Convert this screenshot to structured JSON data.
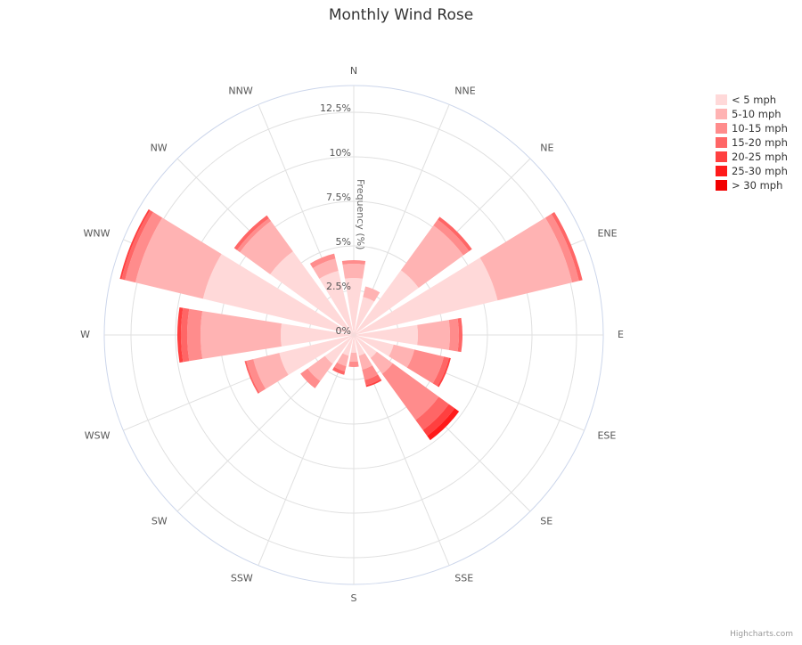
{
  "chart_data": {
    "type": "windrose",
    "title": "Monthly Wind Rose",
    "axis_label": "Frequency (%)",
    "credit": "Highcharts.com",
    "categories": [
      "N",
      "NNE",
      "NE",
      "ENE",
      "E",
      "ESE",
      "SE",
      "SSE",
      "S",
      "SSW",
      "SW",
      "WSW",
      "W",
      "WNW",
      "NW",
      "NNW"
    ],
    "ylim": [
      0,
      14
    ],
    "yticks": [
      {
        "value": 0,
        "label": "0%"
      },
      {
        "value": 2.5,
        "label": "2.5%"
      },
      {
        "value": 5,
        "label": "5%"
      },
      {
        "value": 7.5,
        "label": "7.5%"
      },
      {
        "value": 10,
        "label": "10%"
      },
      {
        "value": 12.5,
        "label": "12.5%"
      }
    ],
    "grid": true,
    "legend": "top-right",
    "series": [
      {
        "name": "< 5 mph",
        "color": "#ffd9d9",
        "values": [
          3.2,
          2.2,
          4.5,
          8.3,
          3.6,
          2.3,
          1.6,
          1.2,
          1.0,
          1.2,
          2.0,
          4.3,
          4.1,
          8.7,
          5.8,
          3.7
        ]
      },
      {
        "name": "5-10 mph",
        "color": "#ffb3b3",
        "values": [
          0.8,
          0.6,
          3.1,
          4.3,
          1.8,
          1.2,
          1.1,
          0.8,
          0.5,
          0.6,
          1.2,
          1.5,
          4.5,
          3.9,
          2.1,
          0.7
        ]
      },
      {
        "name": "10-15 mph",
        "color": "#ff8c8c",
        "values": [
          0.2,
          0,
          0.4,
          0.4,
          0.5,
          1.7,
          3.2,
          0.6,
          0.3,
          0.3,
          0.5,
          0.4,
          0.75,
          0.6,
          0.2,
          0.3
        ]
      },
      {
        "name": "15-20 mph",
        "color": "#ff6666",
        "values": [
          0,
          0,
          0.2,
          0.2,
          0.2,
          0.3,
          0.7,
          0.3,
          0,
          0.2,
          0,
          0.1,
          0.35,
          0.2,
          0.2,
          0
        ]
      },
      {
        "name": "20-25 mph",
        "color": "#ff4040",
        "values": [
          0,
          0,
          0,
          0,
          0,
          0.1,
          0.4,
          0.1,
          0,
          0,
          0,
          0,
          0.2,
          0.1,
          0,
          0
        ]
      },
      {
        "name": "25-30 mph",
        "color": "#ff1a1a",
        "values": [
          0,
          0,
          0,
          0,
          0,
          0,
          0.3,
          0,
          0,
          0,
          0,
          0,
          0,
          0,
          0,
          0
        ]
      },
      {
        "name": "> 30 mph",
        "color": "#f20000",
        "values": [
          0,
          0,
          0,
          0,
          0,
          0,
          0,
          0,
          0,
          0,
          0,
          0,
          0,
          0,
          0,
          0
        ]
      }
    ]
  }
}
